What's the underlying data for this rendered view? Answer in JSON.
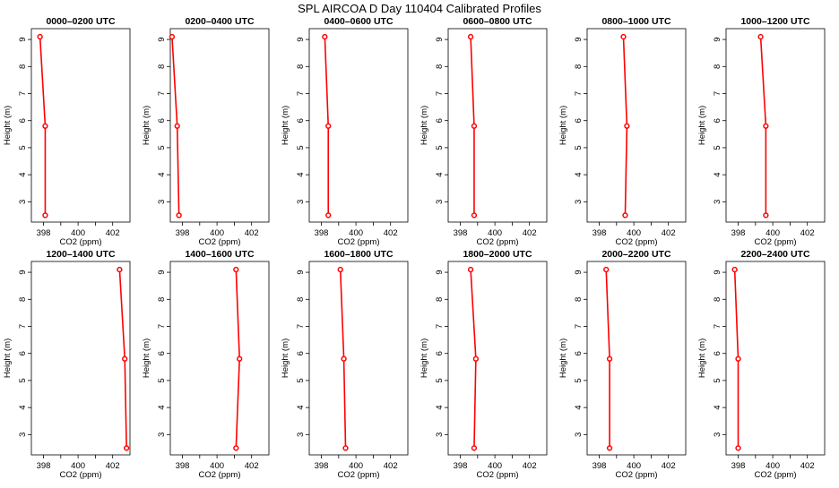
{
  "page_title": "SPL AIRCOA D  Day 110404  Calibrated Profiles",
  "chart_data": {
    "type": "line",
    "xlabel": "CO2 (ppm)",
    "ylabel": "Height (m)",
    "xlim": [
      397.3,
      403.0
    ],
    "ylim": [
      2.25,
      9.4
    ],
    "xticks": [
      398,
      400,
      402
    ],
    "yticks": [
      3,
      4,
      5,
      6,
      7,
      8,
      9
    ],
    "heights": [
      9.1,
      5.8,
      2.5
    ],
    "series_color": "#ff0000",
    "panels": [
      {
        "title": "0000–0200 UTC",
        "co2": [
          397.8,
          398.1,
          398.1
        ]
      },
      {
        "title": "0200–0400 UTC",
        "co2": [
          397.4,
          397.7,
          397.8
        ]
      },
      {
        "title": "0400–0600 UTC",
        "co2": [
          398.2,
          398.4,
          398.4
        ]
      },
      {
        "title": "0600–0800 UTC",
        "co2": [
          398.6,
          398.8,
          398.8
        ]
      },
      {
        "title": "0800–1000 UTC",
        "co2": [
          399.4,
          399.6,
          399.5
        ]
      },
      {
        "title": "1000–1200 UTC",
        "co2": [
          399.3,
          399.6,
          399.6
        ]
      },
      {
        "title": "1200–1400 UTC",
        "co2": [
          402.4,
          402.7,
          402.8
        ]
      },
      {
        "title": "1400–1600 UTC",
        "co2": [
          401.1,
          401.3,
          401.1
        ]
      },
      {
        "title": "1600–1800 UTC",
        "co2": [
          399.1,
          399.3,
          399.4
        ]
      },
      {
        "title": "1800–2000 UTC",
        "co2": [
          398.6,
          398.9,
          398.8
        ]
      },
      {
        "title": "2000–2200 UTC",
        "co2": [
          398.4,
          398.6,
          398.6
        ]
      },
      {
        "title": "2200–2400 UTC",
        "co2": [
          397.8,
          398.0,
          398.0
        ]
      }
    ]
  }
}
